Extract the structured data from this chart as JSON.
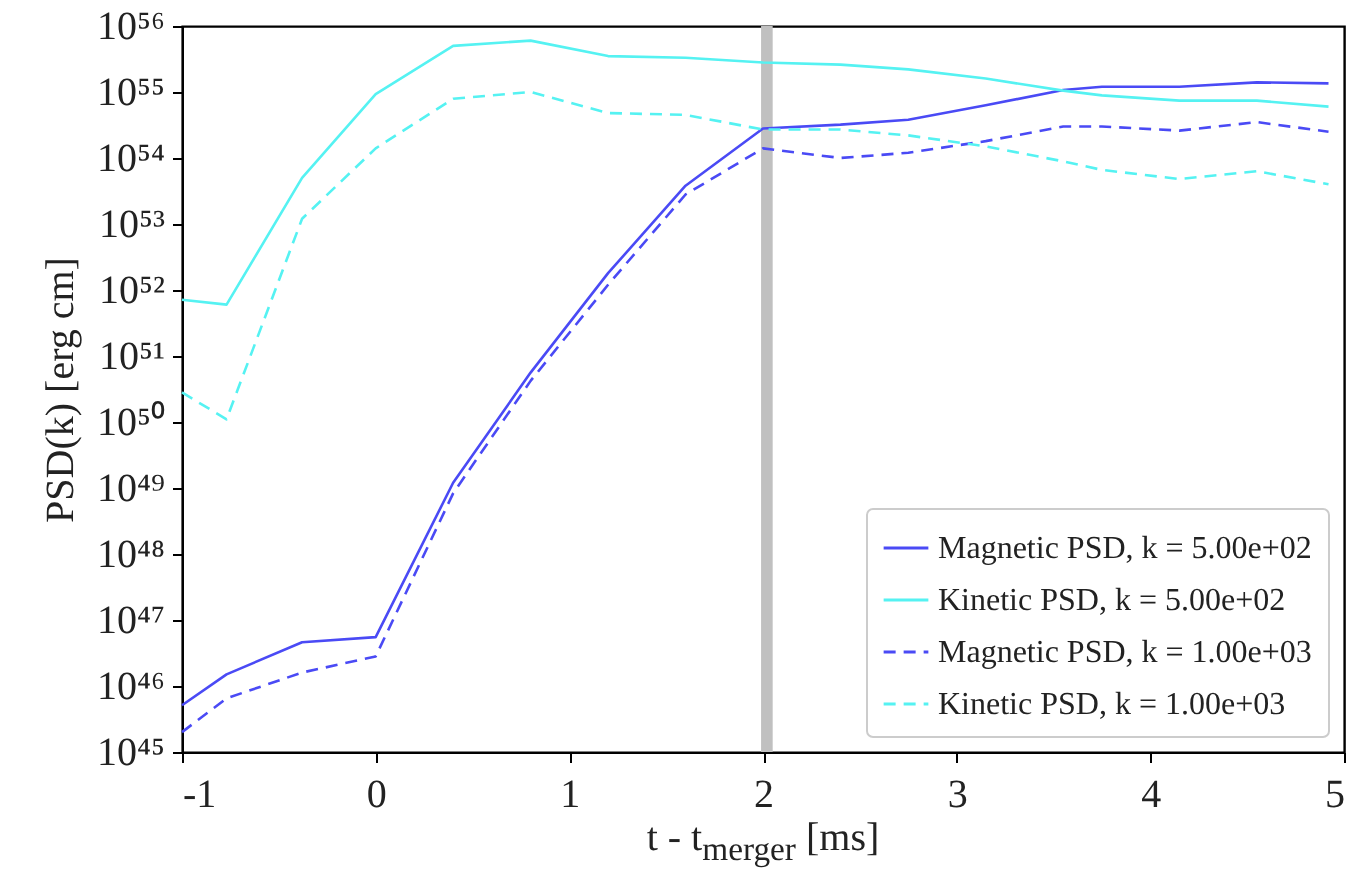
{
  "chart_data": {
    "type": "line",
    "xlabel": "t - t$_{merger}$ [ms]",
    "ylabel": "PSD(k) [erg cm]",
    "x": [
      -1,
      -0.77,
      -0.38,
      0,
      0.4,
      0.8,
      1.2,
      1.6,
      2.0,
      2.4,
      2.75,
      3.15,
      3.55,
      3.75,
      4.15,
      4.55,
      4.92
    ],
    "series": [
      {
        "name": "Magnetic PSD, k = 5.00e+02",
        "color": "#4a4af5",
        "line_style": "solid",
        "values": [
          5.1e+45,
          1.5e+46,
          4.6e+46,
          5.5e+46,
          1.2e+49,
          5.6e+50,
          1.8e+52,
          3.8e+53,
          2.8e+54,
          3.2e+54,
          3.8e+54,
          6.3e+54,
          1.07e+55,
          1.2e+55,
          1.2e+55,
          1.4e+55,
          1.35e+55
        ]
      },
      {
        "name": "Kinetic PSD, k = 5.00e+02",
        "color": "#55f2f2",
        "line_style": "solid",
        "values": [
          7.1e+51,
          6e+51,
          5e+53,
          9.3e+54,
          5e+55,
          6e+55,
          3.5e+55,
          3.3e+55,
          2.8e+55,
          2.6e+55,
          2.2e+55,
          1.6e+55,
          1.05e+55,
          8.9e+54,
          7.4e+54,
          7.4e+54,
          6e+54
        ]
      },
      {
        "name": "Magnetic PSD, k = 1.00e+03",
        "color": "#4a4af5",
        "line_style": "dashed",
        "values": [
          2e+45,
          6.5e+45,
          1.6e+46,
          2.8e+46,
          8.3e+48,
          4.2e+50,
          1.2e+52,
          2.8e+53,
          1.4e+54,
          1e+54,
          1.2e+54,
          1.8e+54,
          3e+54,
          3e+54,
          2.6e+54,
          3.5e+54,
          2.5e+54
        ]
      },
      {
        "name": "Kinetic PSD, k = 1.00e+03",
        "color": "#55f2f2",
        "line_style": "dashed",
        "values": [
          2.8e+50,
          1.1e+50,
          1.2e+53,
          1.4e+54,
          7.9e+54,
          1e+55,
          4.8e+54,
          4.5e+54,
          2.7e+54,
          2.7e+54,
          2.2e+54,
          1.5e+54,
          8.9e+53,
          6.6e+53,
          4.8e+53,
          6.3e+53,
          4e+53
        ]
      }
    ],
    "bands": [
      {
        "axis": "x",
        "from": 1.99,
        "to": 2.05,
        "color": "#c0c0c0"
      }
    ],
    "xlim": [
      -1,
      5
    ],
    "xticks": [
      -1,
      0,
      1,
      2,
      3,
      4,
      5
    ],
    "ylim": [
      1e+45,
      1e+56
    ],
    "yticks": [
      {
        "value": 1e+45,
        "label": "10⁴⁵"
      },
      {
        "value": 1e+46,
        "label": "10⁴⁶"
      },
      {
        "value": 1e+47,
        "label": "10⁴⁷"
      },
      {
        "value": 1e+48,
        "label": "10⁴⁸"
      },
      {
        "value": 1e+49,
        "label": "10⁴⁹"
      },
      {
        "value": 1e+50,
        "label": "10⁵⁰"
      },
      {
        "value": 1e+51,
        "label": "10⁵¹"
      },
      {
        "value": 1e+52,
        "label": "10⁵²"
      },
      {
        "value": 1e+53,
        "label": "10⁵³"
      },
      {
        "value": 1e+54,
        "label": "10⁵⁴"
      },
      {
        "value": 1e+55,
        "label": "10⁵⁵"
      },
      {
        "value": 1e+56,
        "label": "10⁵⁶"
      }
    ],
    "log": true,
    "legend": "bottom right",
    "marker": "none"
  }
}
